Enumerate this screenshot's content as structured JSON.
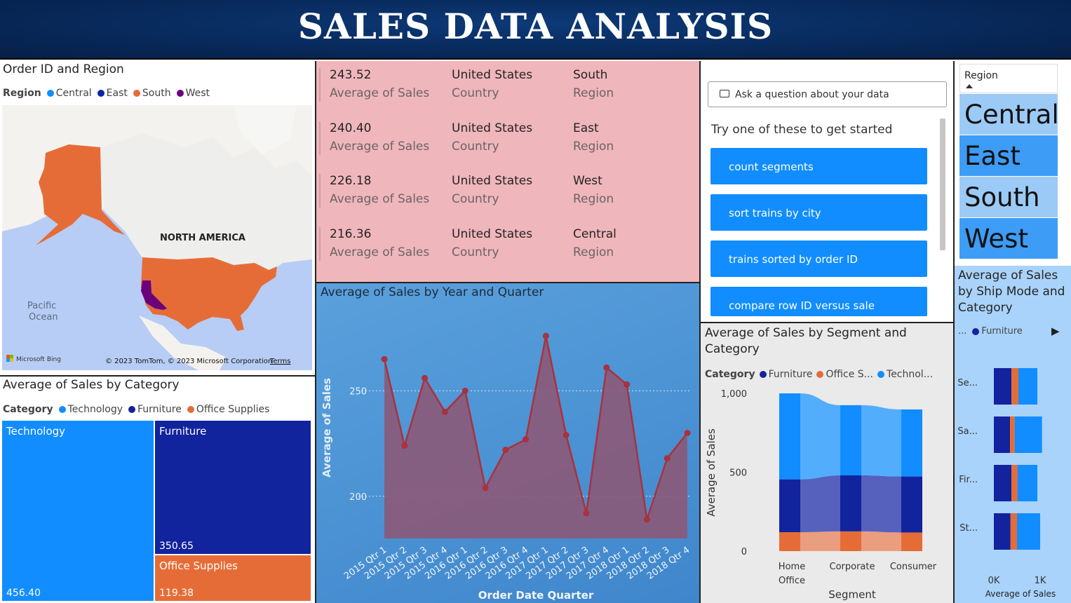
{
  "header": {
    "title": "SALES DATA ANALYSIS"
  },
  "map": {
    "title": "Order ID and Region",
    "legend_label": "Region",
    "legend": [
      {
        "name": "Central",
        "color": "#118dff"
      },
      {
        "name": "East",
        "color": "#12239e"
      },
      {
        "name": "South",
        "color": "#e66c37"
      },
      {
        "name": "West",
        "color": "#6b007b"
      }
    ],
    "labels": {
      "continent": "NORTH AMERICA",
      "ocean_line1": "Pacific",
      "ocean_line2": "Ocean"
    },
    "attribution": "© 2023 TomTom, © 2023 Microsoft Corporation",
    "terms": "Terms",
    "bing": "Microsoft Bing"
  },
  "cards": [
    {
      "value": "243.52",
      "value_label": "Average of Sales",
      "country": "United States",
      "country_label": "Country",
      "region": "South",
      "region_label": "Region"
    },
    {
      "value": "240.40",
      "value_label": "Average of Sales",
      "country": "United States",
      "country_label": "Country",
      "region": "East",
      "region_label": "Region"
    },
    {
      "value": "226.18",
      "value_label": "Average of Sales",
      "country": "United States",
      "country_label": "Country",
      "region": "West",
      "region_label": "Region"
    },
    {
      "value": "216.36",
      "value_label": "Average of Sales",
      "country": "United States",
      "country_label": "Country",
      "region": "Central",
      "region_label": "Region"
    }
  ],
  "qa": {
    "placeholder": "Ask a question about your data",
    "prompt": "Try one of these to get started",
    "suggestions": [
      "count segments",
      "sort trains by city",
      "trains sorted by order ID",
      "compare row ID versus sale"
    ]
  },
  "slicer": {
    "title": "Region",
    "items": [
      "Central",
      "East",
      "South",
      "West"
    ]
  },
  "treemap": {
    "title": "Average of Sales by Category",
    "legend_label": "Category",
    "legend": [
      {
        "name": "Technology",
        "color": "#118dff"
      },
      {
        "name": "Furniture",
        "color": "#12239e"
      },
      {
        "name": "Office Supplies",
        "color": "#e66c37"
      }
    ]
  },
  "line_title": "Average of Sales by Year and Quarter",
  "ribbon_title": "Average of Sales by Segment and Category",
  "ribbon_legend_label": "Category",
  "ribbon_legend": [
    {
      "name": "Furniture",
      "color": "#12239e"
    },
    {
      "name": "Office S...",
      "color": "#e66c37"
    },
    {
      "name": "Technol...",
      "color": "#118dff"
    }
  ],
  "shipmode_title": "Average of Sales by Ship Mode and Category",
  "shipmode_legend": {
    "ellipsis": "...",
    "name": "Furniture",
    "color": "#12239e",
    "next": "▶"
  },
  "chart_data": [
    {
      "type": "treemap",
      "title": "Average of Sales by Category",
      "categories": [
        "Technology",
        "Furniture",
        "Office Supplies"
      ],
      "values": [
        456.4,
        350.65,
        119.38
      ],
      "value_labels": [
        "456.40",
        "350.65",
        "119.38"
      ]
    },
    {
      "type": "area",
      "title": "Average of Sales by Year and Quarter",
      "xlabel": "Order Date Quarter",
      "ylabel": "Average of Sales",
      "x": [
        "2015 Qtr 1",
        "2015 Qtr 2",
        "2015 Qtr 3",
        "2015 Qtr 4",
        "2016 Qtr 1",
        "2016 Qtr 2",
        "2016 Qtr 3",
        "2016 Qtr 4",
        "2017 Qtr 1",
        "2017 Qtr 2",
        "2017 Qtr 3",
        "2017 Qtr 4",
        "2018 Qtr 1",
        "2018 Qtr 2",
        "2018 Qtr 3",
        "2018 Qtr 4"
      ],
      "values": [
        265,
        224,
        256,
        240,
        250,
        204,
        222,
        227,
        276,
        229,
        192,
        261,
        253,
        189,
        218,
        230
      ],
      "yticks": [
        200,
        250
      ],
      "ylim": [
        180,
        285
      ]
    },
    {
      "type": "bar",
      "stacked": true,
      "title": "Average of Sales by Segment and Category",
      "xlabel": "Segment",
      "ylabel": "Average of Sales",
      "categories": [
        "Home Office",
        "Corporate",
        "Consumer"
      ],
      "series": [
        {
          "name": "Office Supplies",
          "values": [
            120,
            125,
            118
          ]
        },
        {
          "name": "Furniture",
          "values": [
            335,
            355,
            355
          ]
        },
        {
          "name": "Technology",
          "values": [
            545,
            445,
            425
          ]
        }
      ],
      "yticks": [
        "0",
        "500",
        "1,000"
      ],
      "ylim": [
        0,
        1000
      ]
    },
    {
      "type": "bar",
      "orientation": "horizontal",
      "stacked": true,
      "title": "Average of Sales by Ship Mode and Category",
      "xlabel": "Average of Sales",
      "categories": [
        "Se...",
        "Sa...",
        "Fir...",
        "St..."
      ],
      "series": [
        {
          "name": "Furniture",
          "values": [
            380,
            350,
            380,
            360
          ]
        },
        {
          "name": "Office Supplies",
          "values": [
            150,
            100,
            130,
            140
          ]
        },
        {
          "name": "Technology",
          "values": [
            410,
            590,
            430,
            500
          ]
        }
      ],
      "xticks": [
        "0K",
        "1K"
      ],
      "xlim": [
        0,
        1100
      ]
    }
  ]
}
